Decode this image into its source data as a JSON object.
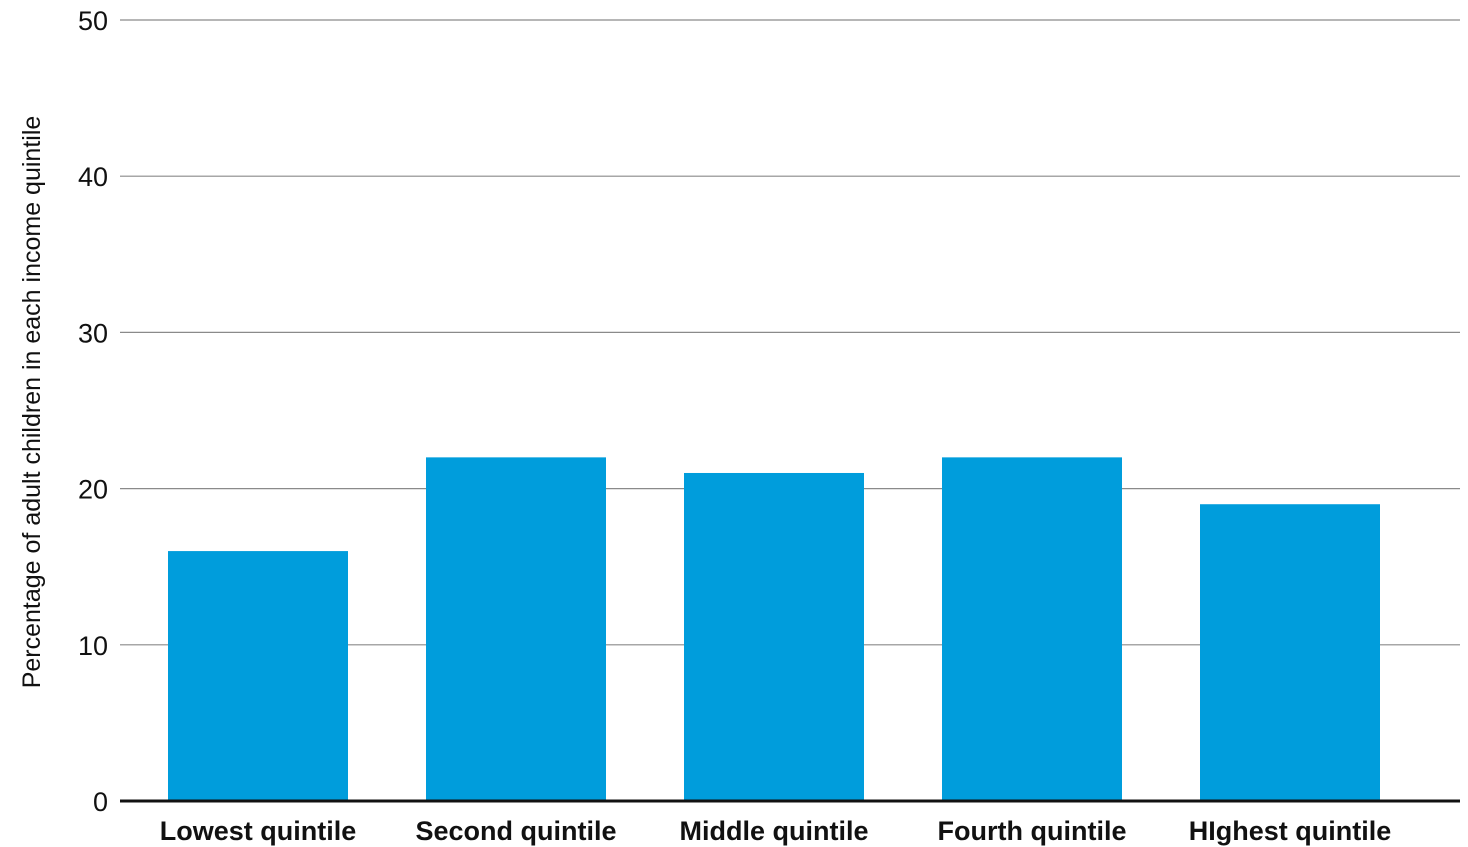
{
  "chart_data": {
    "type": "bar",
    "title": "",
    "xlabel": "",
    "ylabel": "Percentage of adult children in each income quintile",
    "categories": [
      "Lowest quintile",
      "Second quintile",
      "Middle quintile",
      "Fourth quintile",
      "HIghest quintile"
    ],
    "values": [
      16,
      22,
      21,
      22,
      19
    ],
    "ylim": [
      0,
      50
    ],
    "yticks": [
      0,
      10,
      20,
      30,
      40,
      50
    ],
    "grid": true,
    "bar_color": "#009ddc",
    "legend": "none"
  }
}
